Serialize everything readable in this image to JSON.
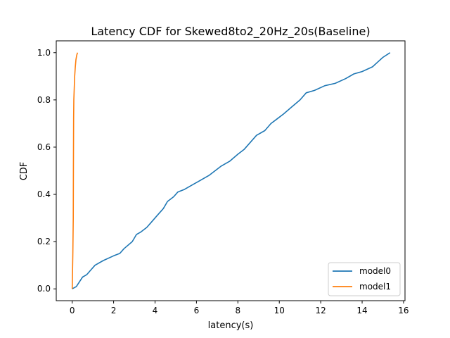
{
  "chart_data": {
    "type": "line",
    "title": "Latency CDF for Skewed8to2_20Hz_20s(Baseline)",
    "xlabel": "latency(s)",
    "ylabel": "CDF",
    "xlim": [
      -0.77,
      16.07
    ],
    "ylim": [
      -0.05,
      1.05
    ],
    "xticks": [
      0,
      2,
      4,
      6,
      8,
      10,
      12,
      14,
      16
    ],
    "yticks": [
      0.0,
      0.2,
      0.4,
      0.6,
      0.8,
      1.0
    ],
    "xtick_labels": [
      "0",
      "2",
      "4",
      "6",
      "8",
      "10",
      "12",
      "14",
      "16"
    ],
    "ytick_labels": [
      "0.0",
      "0.2",
      "0.4",
      "0.6",
      "0.8",
      "1.0"
    ],
    "grid": false,
    "legend_position": "lower-right",
    "series": [
      {
        "name": "model0",
        "color": "#1f77b4",
        "x": [
          0.0,
          0.2,
          0.35,
          0.5,
          0.7,
          0.9,
          1.1,
          1.5,
          2.0,
          2.3,
          2.5,
          2.9,
          3.1,
          3.3,
          3.6,
          3.8,
          4.1,
          4.4,
          4.6,
          4.9,
          5.1,
          5.4,
          5.8,
          6.2,
          6.6,
          6.9,
          7.2,
          7.6,
          8.0,
          8.3,
          8.6,
          8.9,
          9.3,
          9.6,
          9.9,
          10.2,
          10.6,
          11.0,
          11.3,
          11.7,
          12.2,
          12.7,
          13.2,
          13.6,
          14.0,
          14.5,
          14.75,
          15.0,
          15.35
        ],
        "y": [
          0.0,
          0.01,
          0.03,
          0.05,
          0.06,
          0.08,
          0.1,
          0.12,
          0.14,
          0.15,
          0.17,
          0.2,
          0.23,
          0.24,
          0.26,
          0.28,
          0.31,
          0.34,
          0.37,
          0.39,
          0.41,
          0.42,
          0.44,
          0.46,
          0.48,
          0.5,
          0.52,
          0.54,
          0.57,
          0.59,
          0.62,
          0.65,
          0.67,
          0.7,
          0.72,
          0.74,
          0.77,
          0.8,
          0.83,
          0.84,
          0.86,
          0.87,
          0.89,
          0.91,
          0.92,
          0.94,
          0.96,
          0.98,
          1.0
        ]
      },
      {
        "name": "model1",
        "color": "#ff7f0e",
        "x": [
          0.0,
          0.03,
          0.05,
          0.06,
          0.07,
          0.08,
          0.1,
          0.12,
          0.15,
          0.18,
          0.22,
          0.26
        ],
        "y": [
          0.0,
          0.15,
          0.3,
          0.5,
          0.72,
          0.8,
          0.85,
          0.9,
          0.94,
          0.97,
          0.99,
          1.0
        ]
      }
    ]
  }
}
